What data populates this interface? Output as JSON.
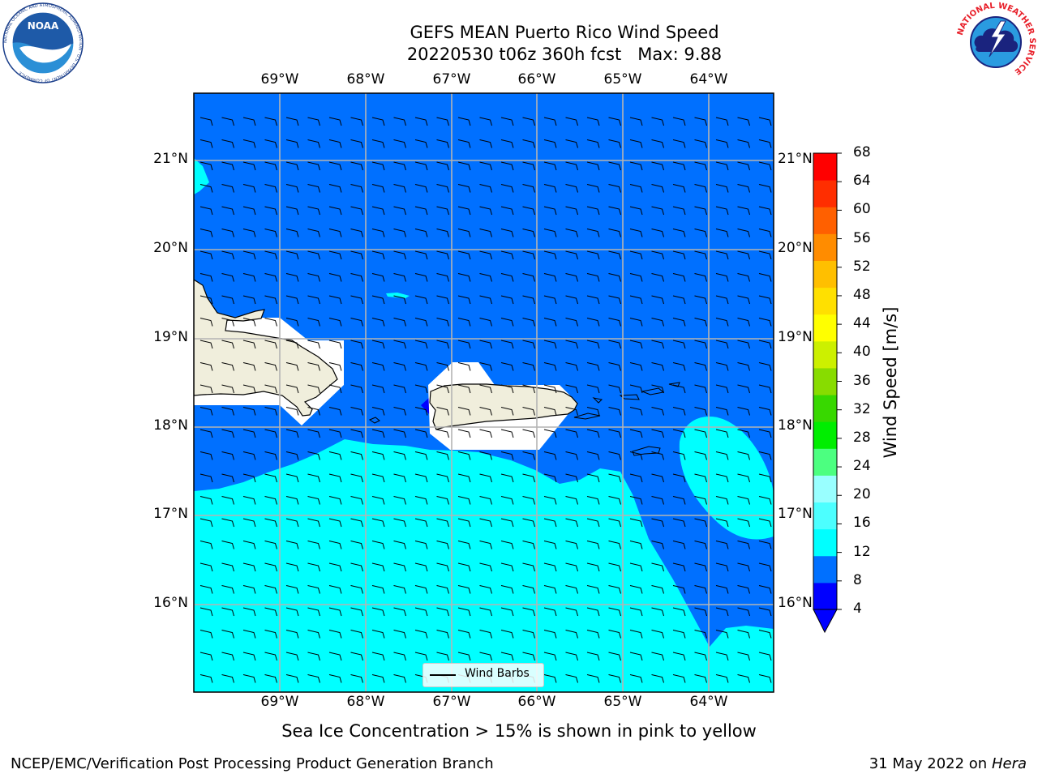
{
  "title_line1": "GEFS MEAN Puerto Rico Wind Speed",
  "title_line2": "20220530 t06z 360h fcst   Max: 9.88",
  "lon_ticks": [
    "69°W",
    "68°W",
    "67°W",
    "66°W",
    "65°W",
    "64°W"
  ],
  "lat_ticks": [
    "21°N",
    "20°N",
    "19°N",
    "18°N",
    "17°N",
    "16°N"
  ],
  "colorbar": {
    "label": "Wind Speed [m/s]",
    "ticks": [
      "68",
      "64",
      "60",
      "56",
      "52",
      "48",
      "44",
      "40",
      "36",
      "32",
      "28",
      "24",
      "20",
      "16",
      "12",
      "8",
      "4"
    ],
    "colors": [
      "#0000ff",
      "#0070ff",
      "#00ffff",
      "#4cffff",
      "#99ffff",
      "#4cff80",
      "#00ee00",
      "#38d800",
      "#88dc00",
      "#ccf000",
      "#ffff00",
      "#ffe000",
      "#ffbf00",
      "#ff8c00",
      "#ff6000",
      "#ff2e00",
      "#ff0000"
    ]
  },
  "legend_label": "Wind Barbs",
  "note": "Sea Ice Concentration > 15% is shown in pink to yellow",
  "footer_left": "NCEP/EMC/Verification Post Processing Product Generation Branch",
  "footer_right_date": "31 May 2022 on",
  "footer_right_host": "Hera",
  "logo_noaa": "NOAA",
  "logo_noaa_ring": "NATIONAL OCEANIC AND ATMOSPHERIC ADMINISTRATION · U.S. DEPARTMENT OF COMMERCE",
  "logo_nws_ring": "NATIONAL WEATHER SERVICE"
}
